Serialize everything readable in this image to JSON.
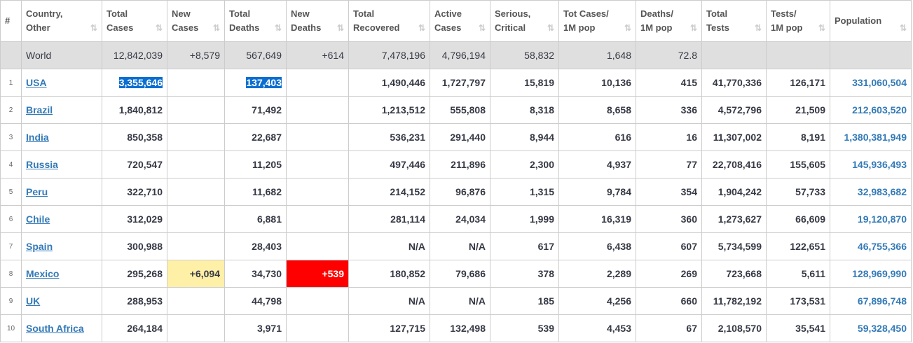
{
  "header": [
    [
      "#"
    ],
    [
      "Country,",
      "Other"
    ],
    [
      "Total",
      "Cases"
    ],
    [
      "New",
      "Cases"
    ],
    [
      "Total",
      "Deaths"
    ],
    [
      "New",
      "Deaths"
    ],
    [
      "Total",
      "Recovered"
    ],
    [
      "Active",
      "Cases"
    ],
    [
      "Serious,",
      "Critical"
    ],
    [
      "Tot Cases/",
      "1M pop"
    ],
    [
      "Deaths/",
      "1M pop"
    ],
    [
      "Total",
      "Tests"
    ],
    [
      "Tests/",
      "1M pop"
    ],
    [
      "Population"
    ]
  ],
  "world": {
    "country": "World",
    "cells": [
      "12,842,039",
      "+8,579",
      "567,649",
      "+614",
      "7,478,196",
      "4,796,194",
      "58,832",
      "1,648",
      "72.8",
      null,
      null,
      null
    ]
  },
  "rows": [
    {
      "rank": "1",
      "country": "USA",
      "cells": [
        "3,355,646",
        null,
        "137,403",
        null,
        "1,490,446",
        "1,727,797",
        "15,819",
        "10,136",
        "415",
        "41,770,336",
        "126,171",
        "331,060,504"
      ]
    },
    {
      "rank": "2",
      "country": "Brazil",
      "cells": [
        "1,840,812",
        null,
        "71,492",
        null,
        "1,213,512",
        "555,808",
        "8,318",
        "8,658",
        "336",
        "4,572,796",
        "21,509",
        "212,603,520"
      ]
    },
    {
      "rank": "3",
      "country": "India",
      "cells": [
        "850,358",
        null,
        "22,687",
        null,
        "536,231",
        "291,440",
        "8,944",
        "616",
        "16",
        "11,307,002",
        "8,191",
        "1,380,381,949"
      ]
    },
    {
      "rank": "4",
      "country": "Russia",
      "cells": [
        "720,547",
        null,
        "11,205",
        null,
        "497,446",
        "211,896",
        "2,300",
        "4,937",
        "77",
        "22,708,416",
        "155,605",
        "145,936,493"
      ]
    },
    {
      "rank": "5",
      "country": "Peru",
      "cells": [
        "322,710",
        null,
        "11,682",
        null,
        "214,152",
        "96,876",
        "1,315",
        "9,784",
        "354",
        "1,904,242",
        "57,733",
        "32,983,682"
      ]
    },
    {
      "rank": "6",
      "country": "Chile",
      "cells": [
        "312,029",
        null,
        "6,881",
        null,
        "281,114",
        "24,034",
        "1,999",
        "16,319",
        "360",
        "1,273,627",
        "66,609",
        "19,120,870"
      ]
    },
    {
      "rank": "7",
      "country": "Spain",
      "cells": [
        "300,988",
        null,
        "28,403",
        null,
        "N/A",
        "N/A",
        "617",
        "6,438",
        "607",
        "5,734,599",
        "122,651",
        "46,755,366"
      ]
    },
    {
      "rank": "8",
      "country": "Mexico",
      "cells": [
        "295,268",
        "+6,094",
        "34,730",
        "+539",
        "180,852",
        "79,686",
        "378",
        "2,289",
        "269",
        "723,668",
        "5,611",
        "128,969,990"
      ]
    },
    {
      "rank": "9",
      "country": "UK",
      "cells": [
        "288,953",
        null,
        "44,798",
        null,
        "N/A",
        "N/A",
        "185",
        "4,256",
        "660",
        "11,782,192",
        "173,531",
        "67,896,748"
      ]
    },
    {
      "rank": "10",
      "country": "South Africa",
      "cells": [
        "264,184",
        null,
        "3,971",
        null,
        "127,715",
        "132,498",
        "539",
        "4,453",
        "67",
        "2,108,570",
        "35,541",
        "59,328,450"
      ]
    }
  ]
}
